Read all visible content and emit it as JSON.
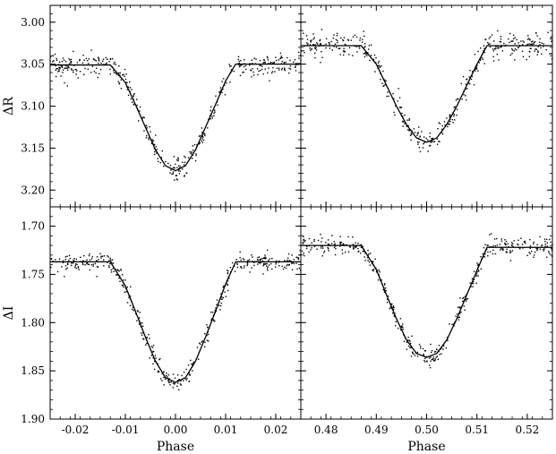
{
  "chart_data": [
    {
      "type": "scatter",
      "panel": "top-left",
      "title": "",
      "xlabel": "",
      "ylabel": "ΔR",
      "xlim": [
        -0.025,
        0.025
      ],
      "ylim": [
        3.22,
        2.98
      ],
      "y_inverted": true,
      "x_ticks": [
        -0.02,
        -0.01,
        0.0,
        0.01,
        0.02
      ],
      "x_tick_labels": [],
      "y_ticks": [
        3.0,
        3.05,
        3.1,
        3.15,
        3.2
      ],
      "y_tick_labels": [
        "3.00",
        "3.05",
        "3.10",
        "3.15",
        "3.20"
      ],
      "series": [
        {
          "kind": "model_curve",
          "x": [
            -0.025,
            -0.013,
            -0.01,
            -0.008,
            -0.006,
            -0.004,
            -0.002,
            0.0,
            0.002,
            0.004,
            0.006,
            0.008,
            0.01,
            0.012,
            0.025
          ],
          "y": [
            3.051,
            3.051,
            3.072,
            3.098,
            3.125,
            3.152,
            3.171,
            3.177,
            3.171,
            3.152,
            3.125,
            3.098,
            3.07,
            3.05,
            3.05
          ]
        },
        {
          "kind": "observations",
          "n_points": 420,
          "scatter_sigma": 0.007,
          "seed": 11
        }
      ],
      "grid": false
    },
    {
      "type": "scatter",
      "panel": "top-right",
      "title": "",
      "xlabel": "",
      "ylabel": "",
      "xlim": [
        0.475,
        0.525
      ],
      "ylim": [
        3.22,
        2.98
      ],
      "y_inverted": true,
      "x_ticks": [
        0.48,
        0.49,
        0.5,
        0.51,
        0.52
      ],
      "x_tick_labels": [],
      "y_ticks": [
        3.0,
        3.05,
        3.1,
        3.15,
        3.2
      ],
      "y_tick_labels": [],
      "series": [
        {
          "kind": "model_curve",
          "x": [
            0.475,
            0.487,
            0.49,
            0.492,
            0.494,
            0.496,
            0.498,
            0.5,
            0.502,
            0.504,
            0.506,
            0.508,
            0.51,
            0.512,
            0.525
          ],
          "y": [
            3.028,
            3.028,
            3.05,
            3.075,
            3.1,
            3.122,
            3.138,
            3.143,
            3.138,
            3.122,
            3.1,
            3.075,
            3.05,
            3.028,
            3.028
          ]
        },
        {
          "kind": "observations",
          "n_points": 420,
          "scatter_sigma": 0.007,
          "seed": 23
        }
      ],
      "grid": false
    },
    {
      "type": "scatter",
      "panel": "bottom-left",
      "title": "",
      "xlabel": "Phase",
      "ylabel": "ΔI",
      "xlim": [
        -0.025,
        0.025
      ],
      "ylim": [
        1.9,
        1.68
      ],
      "y_inverted": true,
      "x_ticks": [
        -0.02,
        -0.01,
        0.0,
        0.01,
        0.02
      ],
      "x_tick_labels": [
        "-0.02",
        "-0.01",
        "0.00",
        "0.01",
        "0.02"
      ],
      "y_ticks": [
        1.7,
        1.75,
        1.8,
        1.85,
        1.9
      ],
      "y_tick_labels": [
        "1.70",
        "1.75",
        "1.80",
        "1.85",
        "1.90"
      ],
      "series": [
        {
          "kind": "model_curve",
          "x": [
            -0.025,
            -0.013,
            -0.01,
            -0.008,
            -0.006,
            -0.004,
            -0.002,
            0.0,
            0.002,
            0.004,
            0.006,
            0.008,
            0.01,
            0.012,
            0.025
          ],
          "y": [
            1.737,
            1.737,
            1.762,
            1.788,
            1.815,
            1.84,
            1.857,
            1.862,
            1.857,
            1.84,
            1.815,
            1.788,
            1.76,
            1.737,
            1.737
          ]
        },
        {
          "kind": "observations",
          "n_points": 420,
          "scatter_sigma": 0.005,
          "seed": 37
        }
      ],
      "grid": false
    },
    {
      "type": "scatter",
      "panel": "bottom-right",
      "title": "",
      "xlabel": "Phase",
      "ylabel": "",
      "xlim": [
        0.475,
        0.525
      ],
      "ylim": [
        1.9,
        1.68
      ],
      "y_inverted": true,
      "x_ticks": [
        0.48,
        0.49,
        0.5,
        0.51,
        0.52
      ],
      "x_tick_labels": [
        "0.48",
        "0.49",
        "0.50",
        "0.51",
        "0.52"
      ],
      "y_ticks": [
        1.7,
        1.75,
        1.8,
        1.85,
        1.9
      ],
      "y_tick_labels": [],
      "series": [
        {
          "kind": "model_curve",
          "x": [
            0.475,
            0.487,
            0.49,
            0.492,
            0.494,
            0.496,
            0.498,
            0.5,
            0.502,
            0.504,
            0.506,
            0.508,
            0.51,
            0.512,
            0.525
          ],
          "y": [
            1.72,
            1.72,
            1.745,
            1.771,
            1.796,
            1.818,
            1.832,
            1.836,
            1.832,
            1.818,
            1.796,
            1.771,
            1.746,
            1.722,
            1.722
          ]
        },
        {
          "kind": "observations",
          "n_points": 420,
          "scatter_sigma": 0.005,
          "seed": 53
        }
      ],
      "grid": false
    }
  ],
  "style": {
    "point_color": "#000000",
    "line_color": "#000000",
    "axis_color": "#000000",
    "background": "#ffffff"
  }
}
